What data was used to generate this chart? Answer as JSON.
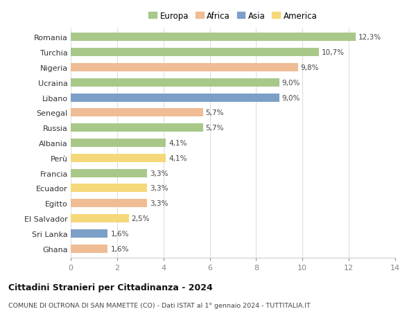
{
  "countries": [
    "Romania",
    "Turchia",
    "Nigeria",
    "Ucraina",
    "Libano",
    "Senegal",
    "Russia",
    "Albania",
    "Perù",
    "Francia",
    "Ecuador",
    "Egitto",
    "El Salvador",
    "Sri Lanka",
    "Ghana"
  ],
  "values": [
    12.3,
    10.7,
    9.8,
    9.0,
    9.0,
    5.7,
    5.7,
    4.1,
    4.1,
    3.3,
    3.3,
    3.3,
    2.5,
    1.6,
    1.6
  ],
  "labels": [
    "12,3%",
    "10,7%",
    "9,8%",
    "9,0%",
    "9,0%",
    "5,7%",
    "5,7%",
    "4,1%",
    "4,1%",
    "3,3%",
    "3,3%",
    "3,3%",
    "2,5%",
    "1,6%",
    "1,6%"
  ],
  "continents": [
    "Europa",
    "Europa",
    "Africa",
    "Europa",
    "Asia",
    "Africa",
    "Europa",
    "Europa",
    "America",
    "Europa",
    "America",
    "Africa",
    "America",
    "Asia",
    "Africa"
  ],
  "continent_colors": {
    "Europa": "#a8c88a",
    "Africa": "#f0bc94",
    "Asia": "#7b9fc7",
    "America": "#f5d87a"
  },
  "legend_order": [
    "Europa",
    "Africa",
    "Asia",
    "America"
  ],
  "title": "Cittadini Stranieri per Cittadinanza - 2024",
  "subtitle": "COMUNE DI OLTRONA DI SAN MAMETTE (CO) - Dati ISTAT al 1° gennaio 2024 - TUTTITALIA.IT",
  "xlim": [
    0,
    14
  ],
  "xticks": [
    0,
    2,
    4,
    6,
    8,
    10,
    12,
    14
  ],
  "bg_color": "#ffffff",
  "grid_color": "#dddddd",
  "bar_height": 0.55
}
